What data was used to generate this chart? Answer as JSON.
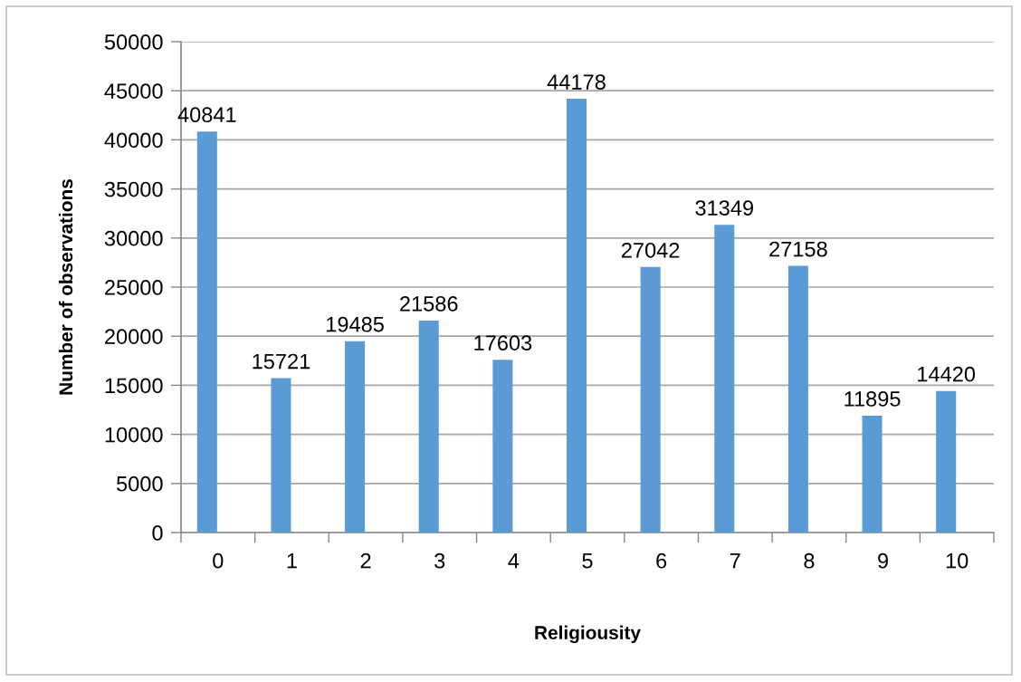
{
  "chart_data": {
    "type": "bar",
    "xlabel": "Religiousity",
    "ylabel": "Number of observations",
    "categories": [
      "0",
      "1",
      "2",
      "3",
      "4",
      "5",
      "6",
      "7",
      "8",
      "9",
      "10"
    ],
    "values": [
      40841,
      15721,
      19485,
      21586,
      17603,
      44178,
      27042,
      31349,
      27158,
      11895,
      14420
    ],
    "color": "#5b9bd5",
    "ylim": [
      0,
      50000
    ],
    "yticks": [
      0,
      5000,
      10000,
      15000,
      20000,
      25000,
      30000,
      35000,
      40000,
      45000,
      50000
    ],
    "grid": "y",
    "data_labels": true
  }
}
